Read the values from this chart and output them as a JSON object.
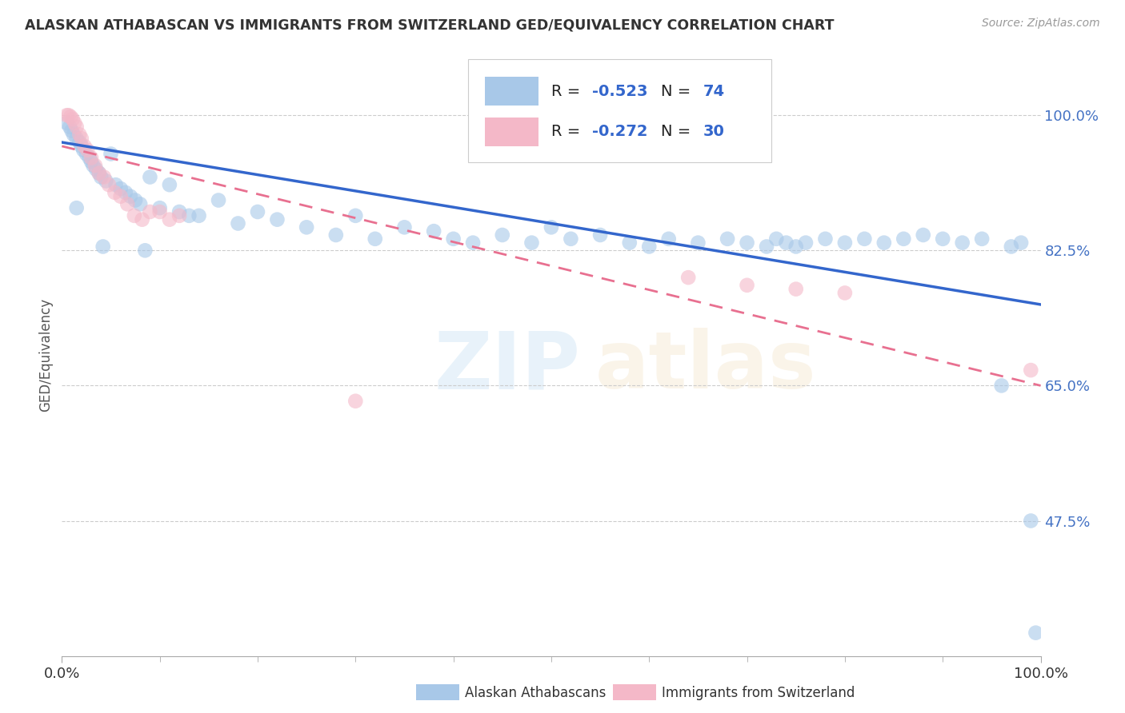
{
  "title": "ALASKAN ATHABASCAN VS IMMIGRANTS FROM SWITZERLAND GED/EQUIVALENCY CORRELATION CHART",
  "source": "Source: ZipAtlas.com",
  "ylabel": "GED/Equivalency",
  "xlim": [
    0.0,
    1.0
  ],
  "ylim": [
    0.3,
    1.08
  ],
  "yticks": [
    1.0,
    0.825,
    0.65,
    0.475
  ],
  "ytick_labels": [
    "100.0%",
    "82.5%",
    "65.0%",
    "47.5%"
  ],
  "xtick_labels": [
    "0.0%",
    "100.0%"
  ],
  "xticks": [
    0.0,
    1.0
  ],
  "R_blue": -0.523,
  "N_blue": 74,
  "R_pink": -0.272,
  "N_pink": 30,
  "blue_color": "#a8c8e8",
  "pink_color": "#f4b8c8",
  "blue_line_color": "#3366cc",
  "pink_line_color": "#e87090",
  "legend_label_blue": "Alaskan Athabascans",
  "legend_label_pink": "Immigrants from Switzerland",
  "blue_scatter_x": [
    0.005,
    0.008,
    0.01,
    0.012,
    0.015,
    0.018,
    0.02,
    0.022,
    0.025,
    0.028,
    0.03,
    0.032,
    0.035,
    0.038,
    0.04,
    0.045,
    0.05,
    0.055,
    0.06,
    0.065,
    0.07,
    0.075,
    0.08,
    0.09,
    0.1,
    0.11,
    0.12,
    0.14,
    0.16,
    0.18,
    0.2,
    0.22,
    0.25,
    0.28,
    0.3,
    0.32,
    0.35,
    0.38,
    0.4,
    0.42,
    0.45,
    0.48,
    0.5,
    0.52,
    0.55,
    0.58,
    0.6,
    0.62,
    0.65,
    0.68,
    0.7,
    0.72,
    0.73,
    0.74,
    0.75,
    0.76,
    0.78,
    0.8,
    0.82,
    0.84,
    0.86,
    0.88,
    0.9,
    0.92,
    0.94,
    0.96,
    0.97,
    0.98,
    0.99,
    0.995,
    0.015,
    0.042,
    0.085,
    0.13
  ],
  "blue_scatter_y": [
    0.99,
    0.985,
    0.98,
    0.975,
    0.97,
    0.965,
    0.96,
    0.955,
    0.95,
    0.945,
    0.94,
    0.935,
    0.93,
    0.925,
    0.92,
    0.915,
    0.95,
    0.91,
    0.905,
    0.9,
    0.895,
    0.89,
    0.885,
    0.92,
    0.88,
    0.91,
    0.875,
    0.87,
    0.89,
    0.86,
    0.875,
    0.865,
    0.855,
    0.845,
    0.87,
    0.84,
    0.855,
    0.85,
    0.84,
    0.835,
    0.845,
    0.835,
    0.855,
    0.84,
    0.845,
    0.835,
    0.83,
    0.84,
    0.835,
    0.84,
    0.835,
    0.83,
    0.84,
    0.835,
    0.83,
    0.835,
    0.84,
    0.835,
    0.84,
    0.835,
    0.84,
    0.845,
    0.84,
    0.835,
    0.84,
    0.65,
    0.83,
    0.835,
    0.475,
    0.33,
    0.88,
    0.83,
    0.825,
    0.87
  ],
  "pink_scatter_x": [
    0.005,
    0.007,
    0.009,
    0.011,
    0.013,
    0.015,
    0.018,
    0.02,
    0.023,
    0.026,
    0.03,
    0.034,
    0.038,
    0.043,
    0.048,
    0.054,
    0.06,
    0.067,
    0.074,
    0.082,
    0.09,
    0.1,
    0.11,
    0.12,
    0.3,
    0.64,
    0.7,
    0.75,
    0.8,
    0.99
  ],
  "pink_scatter_y": [
    1.0,
    1.0,
    0.998,
    0.995,
    0.99,
    0.985,
    0.975,
    0.97,
    0.96,
    0.955,
    0.945,
    0.935,
    0.925,
    0.92,
    0.91,
    0.9,
    0.895,
    0.885,
    0.87,
    0.865,
    0.875,
    0.875,
    0.865,
    0.87,
    0.63,
    0.79,
    0.78,
    0.775,
    0.77,
    0.67
  ],
  "blue_trend_x": [
    0.0,
    1.0
  ],
  "blue_trend_y": [
    0.965,
    0.755
  ],
  "pink_trend_x": [
    0.0,
    1.0
  ],
  "pink_trend_y": [
    0.96,
    0.65
  ]
}
